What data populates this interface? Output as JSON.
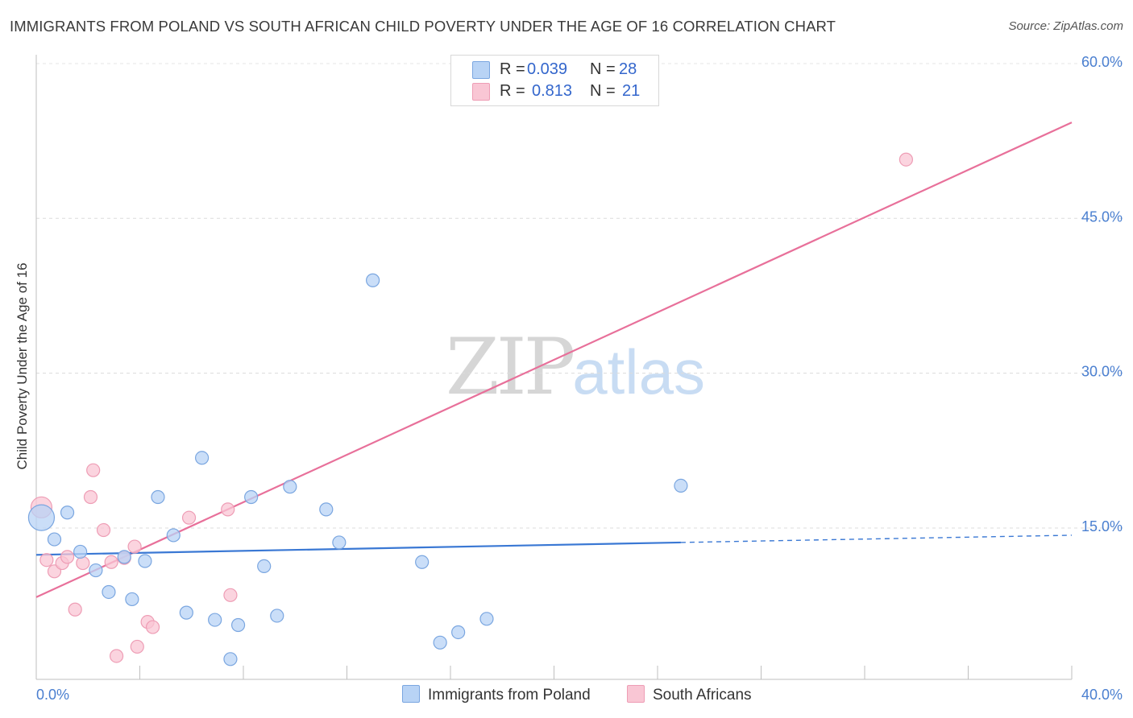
{
  "header": {
    "title": "IMMIGRANTS FROM POLAND VS SOUTH AFRICAN CHILD POVERTY UNDER THE AGE OF 16 CORRELATION CHART",
    "source": "Source: ZipAtlas.com"
  },
  "watermark": {
    "zip": "ZIP",
    "atlas": "atlas"
  },
  "legend": {
    "rows": [
      {
        "r_label": "R =",
        "r_value": "0.039",
        "n_label": "N =",
        "n_value": "28"
      },
      {
        "r_label": "R =",
        "r_value": "0.813",
        "n_label": "N =",
        "n_value": "21"
      }
    ]
  },
  "bottom_legend": {
    "series1": "Immigrants from Poland",
    "series2": "South Africans"
  },
  "colors": {
    "blue_fill": "#b8d3f5",
    "blue_stroke": "#7aa6e0",
    "blue_line": "#3a78d4",
    "pink_fill": "#f9c6d4",
    "pink_stroke": "#ee9db5",
    "pink_line": "#e8709a",
    "tick_label": "#4a7fd0"
  },
  "chart_data": {
    "type": "scatter",
    "title": "IMMIGRANTS FROM POLAND VS SOUTH AFRICAN CHILD POVERTY UNDER THE AGE OF 16 CORRELATION CHART",
    "xlabel": "",
    "ylabel": "Child Poverty Under the Age of 16",
    "xlim": [
      0,
      40
    ],
    "ylim": [
      0,
      63
    ],
    "x_tick_labels": [
      "0.0%",
      "40.0%"
    ],
    "y_ticks": [
      15,
      30,
      45,
      60
    ],
    "y_tick_labels": [
      "15.0%",
      "30.0%",
      "45.0%",
      "60.0%"
    ],
    "grid": "horizontal dashed",
    "legend_position": "top-center",
    "series": [
      {
        "name": "Immigrants from Poland",
        "R": 0.039,
        "N": 28,
        "points": [
          [
            0.2,
            16.0
          ],
          [
            1.2,
            16.5
          ],
          [
            0.7,
            13.9
          ],
          [
            1.7,
            12.7
          ],
          [
            2.3,
            10.9
          ],
          [
            2.8,
            8.8
          ],
          [
            3.4,
            12.2
          ],
          [
            3.7,
            8.1
          ],
          [
            4.2,
            11.8
          ],
          [
            4.7,
            18.0
          ],
          [
            5.3,
            14.3
          ],
          [
            5.8,
            6.8
          ],
          [
            6.4,
            21.8
          ],
          [
            6.9,
            6.1
          ],
          [
            7.5,
            2.3
          ],
          [
            7.8,
            5.6
          ],
          [
            8.3,
            18.0
          ],
          [
            8.8,
            11.3
          ],
          [
            9.3,
            6.5
          ],
          [
            9.8,
            19.0
          ],
          [
            11.2,
            16.8
          ],
          [
            11.7,
            13.6
          ],
          [
            13.0,
            39.0
          ],
          [
            14.9,
            11.7
          ],
          [
            15.6,
            3.9
          ],
          [
            16.3,
            4.9
          ],
          [
            17.4,
            6.2
          ],
          [
            24.9,
            19.1
          ]
        ],
        "trend": {
          "x0": 0,
          "y0": 12.4,
          "x1": 24.9,
          "y1": 13.6,
          "dashed_to_x": 40,
          "dashed_to_y": 14.3
        }
      },
      {
        "name": "South Africans",
        "R": 0.813,
        "N": 21,
        "points": [
          [
            0.2,
            17.0
          ],
          [
            0.4,
            11.9
          ],
          [
            0.7,
            10.8
          ],
          [
            1.0,
            11.6
          ],
          [
            1.2,
            12.2
          ],
          [
            1.5,
            7.1
          ],
          [
            1.8,
            11.6
          ],
          [
            2.1,
            18.0
          ],
          [
            2.2,
            20.6
          ],
          [
            2.6,
            14.8
          ],
          [
            2.9,
            11.7
          ],
          [
            3.1,
            2.6
          ],
          [
            3.4,
            12.1
          ],
          [
            3.8,
            13.2
          ],
          [
            3.9,
            3.5
          ],
          [
            4.3,
            5.9
          ],
          [
            4.5,
            5.4
          ],
          [
            5.9,
            16.0
          ],
          [
            7.4,
            16.8
          ],
          [
            7.5,
            8.5
          ],
          [
            33.6,
            50.7
          ]
        ],
        "trend": {
          "x0": 0,
          "y0": 8.3,
          "x1": 40,
          "y1": 54.3
        }
      }
    ]
  }
}
